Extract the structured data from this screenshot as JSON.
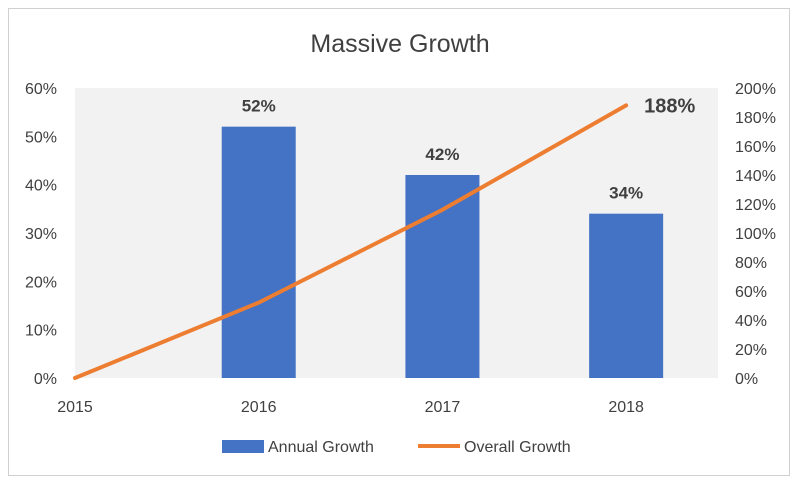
{
  "chart_data": {
    "type": "bar",
    "title": "Massive Growth",
    "categories": [
      "2015",
      "2016",
      "2017",
      "2018"
    ],
    "series": [
      {
        "name": "Annual Growth",
        "type": "bar",
        "axis": "left",
        "color": "#4472C4",
        "values": [
          null,
          52,
          42,
          34
        ],
        "data_labels": [
          "",
          "52%",
          "42%",
          "34%"
        ]
      },
      {
        "name": "Overall Growth",
        "type": "line",
        "axis": "right",
        "color": "#ED7D31",
        "values": [
          0,
          52,
          116,
          188
        ],
        "data_labels": [
          "",
          "",
          "",
          "188%"
        ]
      }
    ],
    "y_left": {
      "ylim": [
        0,
        60
      ],
      "ticks": [
        "0%",
        "10%",
        "20%",
        "30%",
        "40%",
        "50%",
        "60%"
      ]
    },
    "y_right": {
      "ylim": [
        0,
        200
      ],
      "ticks": [
        "0%",
        "20%",
        "40%",
        "60%",
        "80%",
        "100%",
        "120%",
        "140%",
        "160%",
        "180%",
        "200%"
      ]
    },
    "grid": false,
    "legend": "bottom",
    "plot_background": "#F2F2F2"
  }
}
